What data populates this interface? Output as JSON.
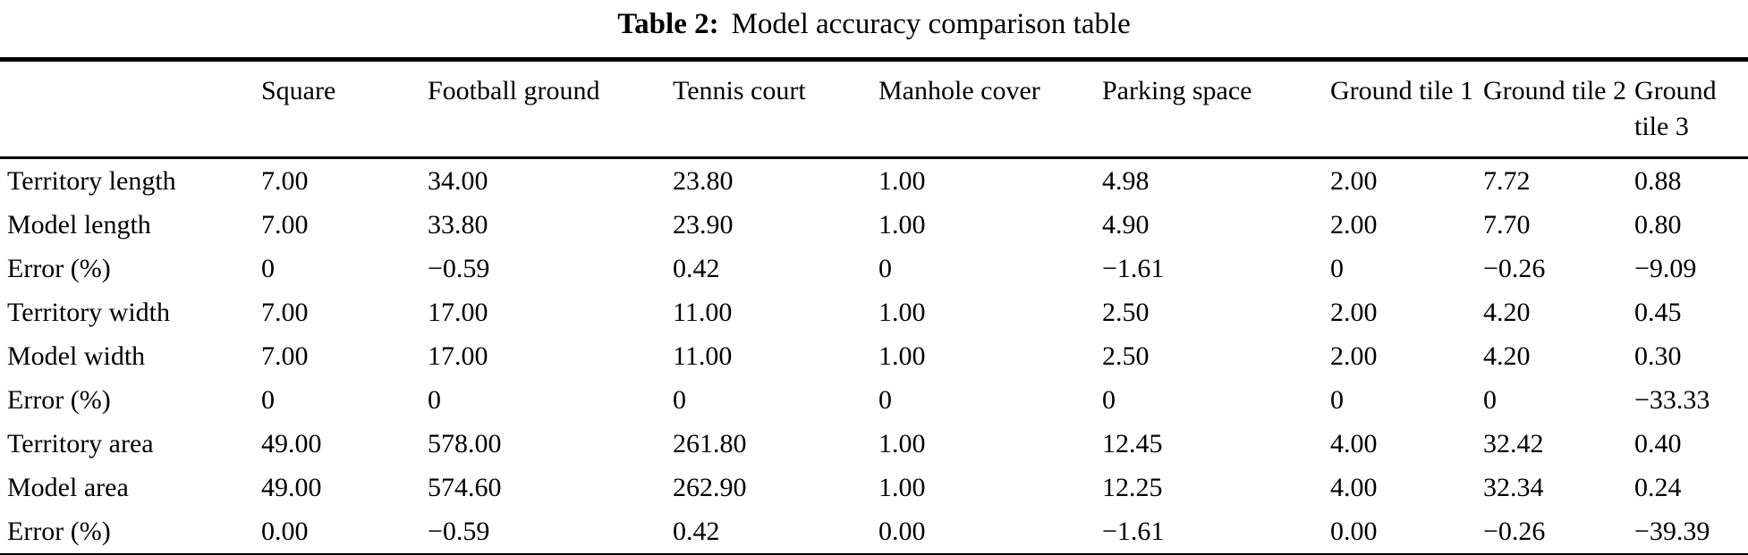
{
  "caption": {
    "label": "Table 2:",
    "text": "Model accuracy comparison table"
  },
  "table": {
    "columns": [
      "",
      "Square",
      "Football ground",
      "Tennis court",
      "Manhole cover",
      "Parking space",
      "Ground tile 1",
      "Ground tile 2",
      "Ground tile 3"
    ],
    "rows": [
      {
        "cells": [
          "Territory length",
          "7.00",
          "34.00",
          "23.80",
          "1.00",
          "4.98",
          "2.00",
          "7.72",
          "0.88"
        ]
      },
      {
        "cells": [
          "Model length",
          "7.00",
          "33.80",
          "23.90",
          "1.00",
          "4.90",
          "2.00",
          "7.70",
          "0.80"
        ]
      },
      {
        "cells": [
          "Error (%)",
          "0",
          "−0.59",
          "0.42",
          "0",
          "−1.61",
          "0",
          "−0.26",
          "−9.09"
        ]
      },
      {
        "cells": [
          "Territory width",
          "7.00",
          "17.00",
          "11.00",
          "1.00",
          "2.50",
          "2.00",
          "4.20",
          "0.45"
        ]
      },
      {
        "cells": [
          "Model width",
          "7.00",
          "17.00",
          "11.00",
          "1.00",
          "2.50",
          "2.00",
          "4.20",
          "0.30"
        ]
      },
      {
        "cells": [
          "Error (%)",
          "0",
          "0",
          "0",
          "0",
          "0",
          "0",
          "0",
          "−33.33"
        ]
      },
      {
        "cells": [
          "Territory area",
          "49.00",
          "578.00",
          "261.80",
          "1.00",
          "12.45",
          "4.00",
          "32.42",
          "0.40"
        ]
      },
      {
        "cells": [
          "Model area",
          "49.00",
          "574.60",
          "262.90",
          "1.00",
          "12.25",
          "4.00",
          "32.34",
          "0.24"
        ]
      },
      {
        "cells": [
          "Error (%)",
          "0.00",
          "−0.59",
          "0.42",
          "0.00",
          "−1.61",
          "0.00",
          "−0.26",
          "−39.39"
        ]
      }
    ]
  },
  "colors": {
    "text": "#000000",
    "background": "#ffffff",
    "rule": "#000000"
  }
}
